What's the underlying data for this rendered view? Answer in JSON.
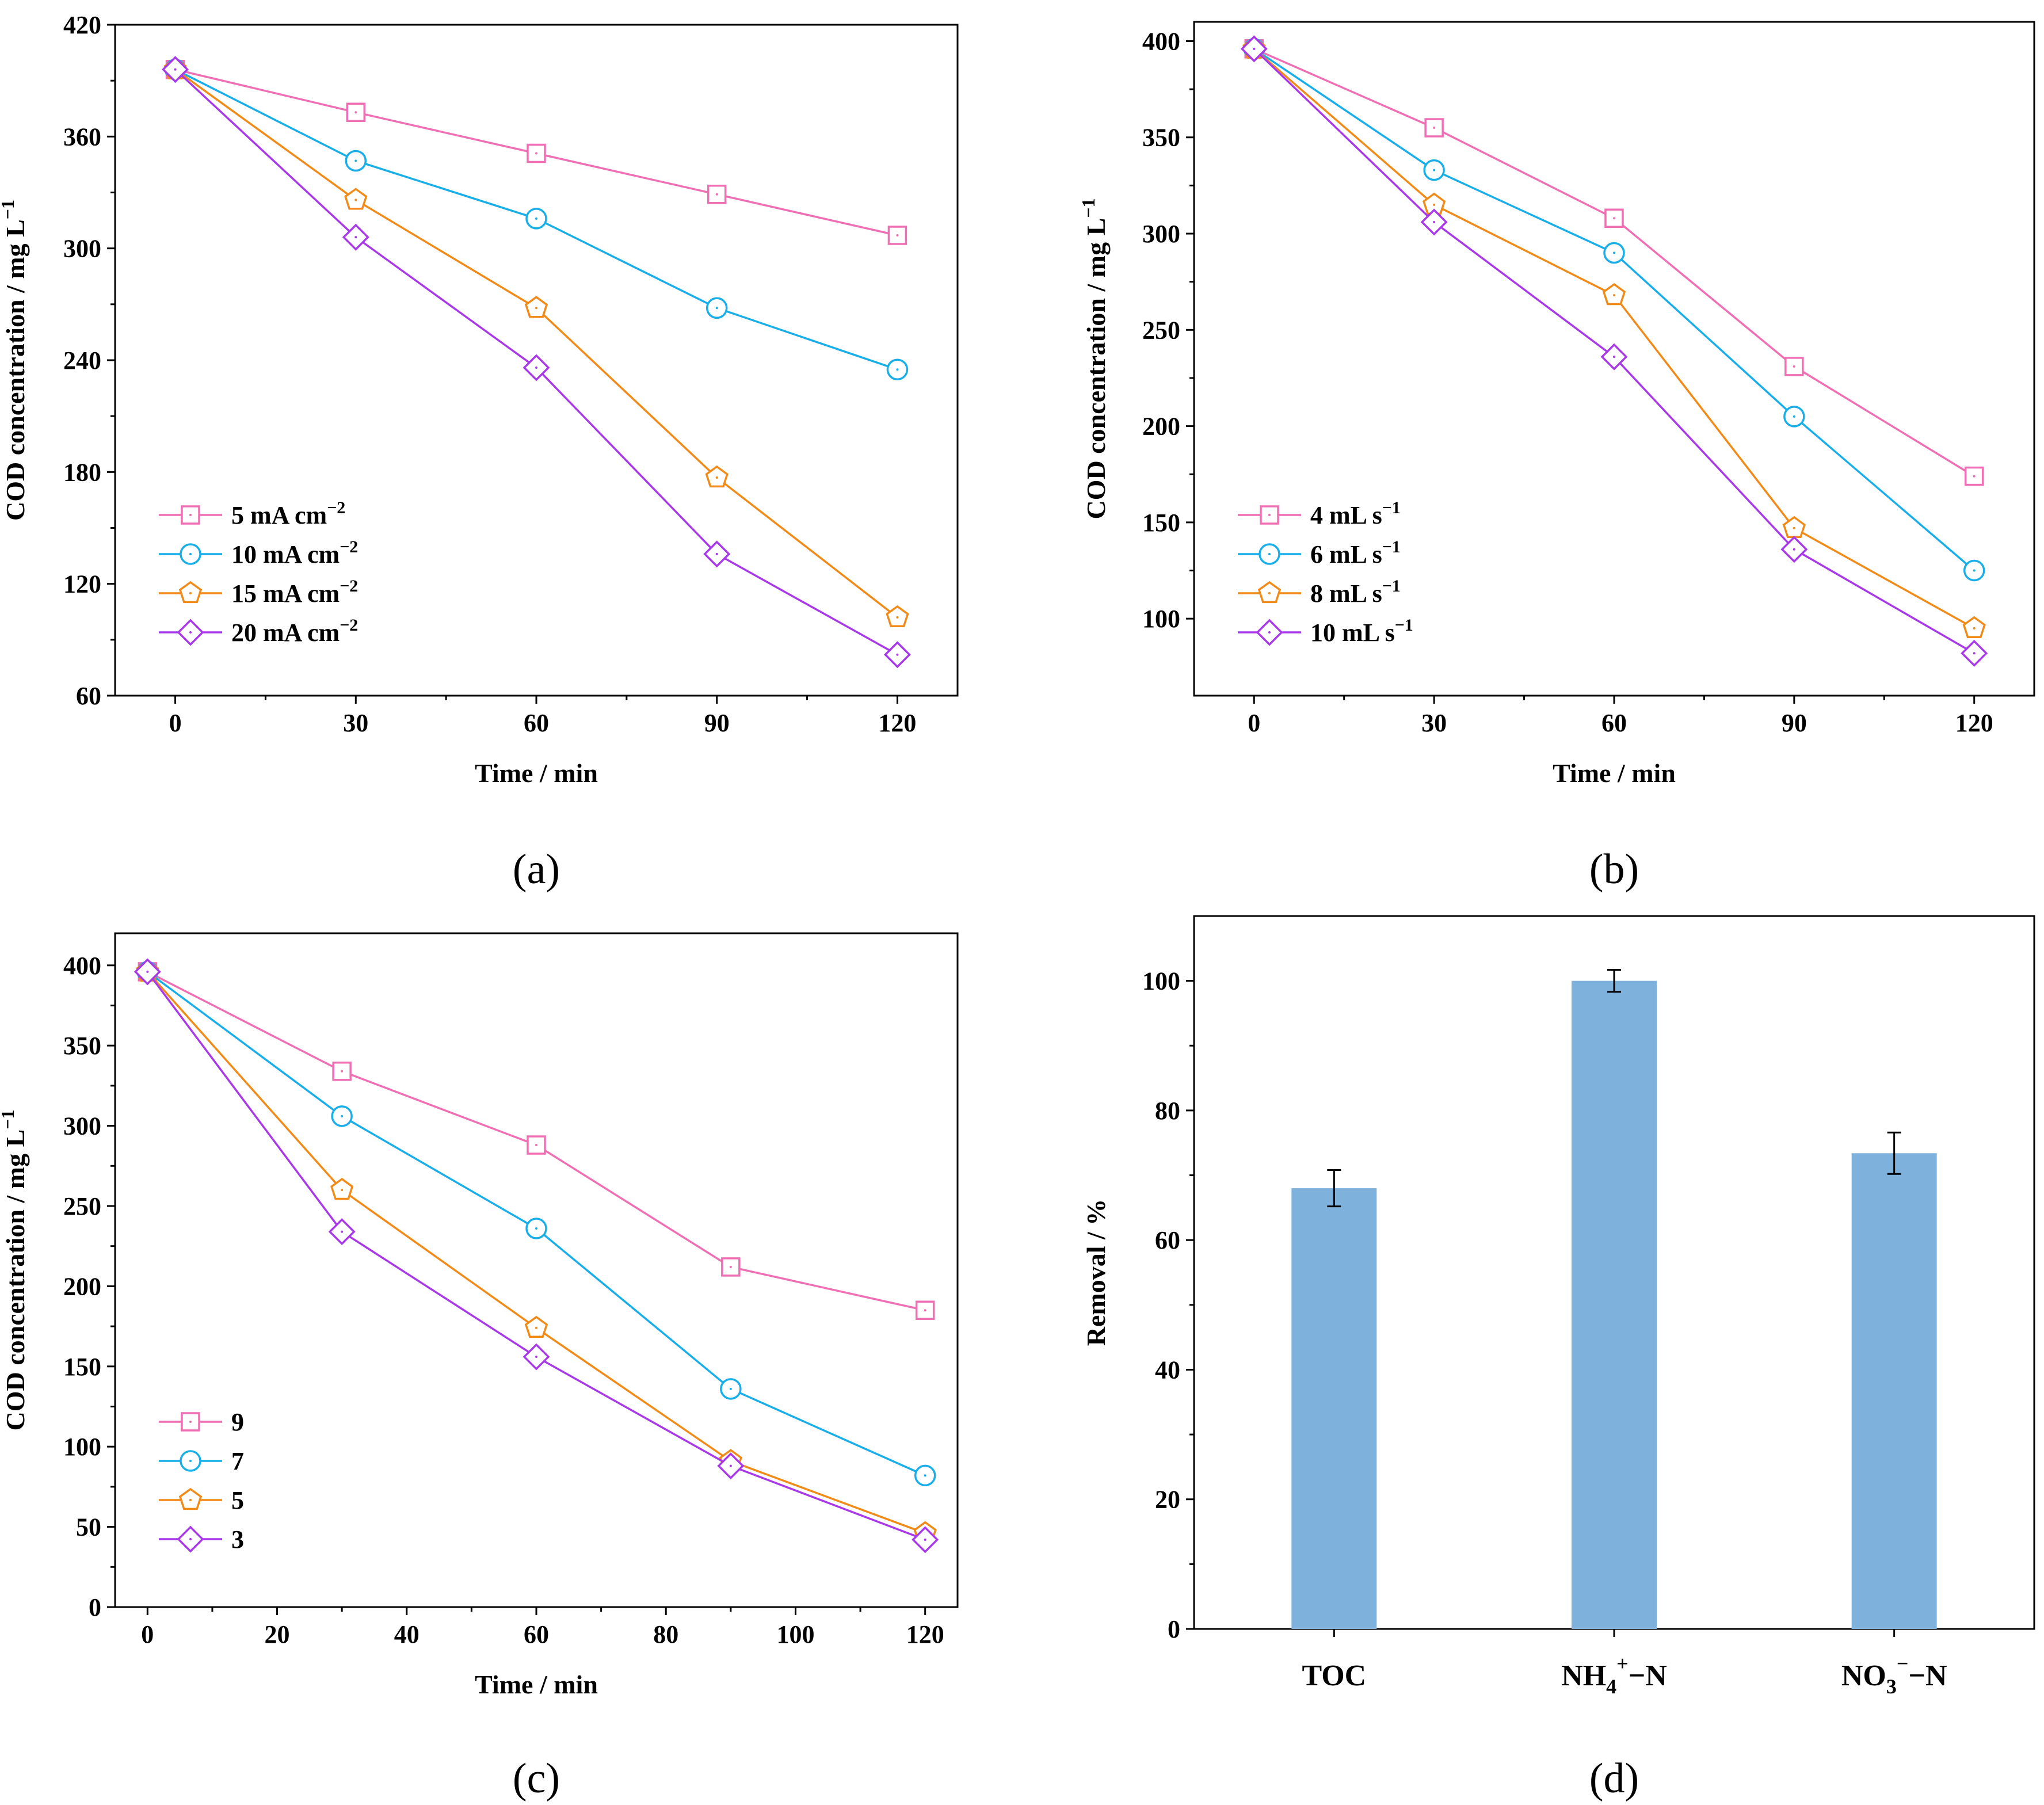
{
  "chart_data": [
    {
      "type": "line",
      "caption": "(a)",
      "xlabel": "Time / min",
      "ylabel_main": "COD concentration / mg L",
      "ylabel_sup": "−1",
      "x": [
        0,
        30,
        60,
        90,
        120
      ],
      "x_ticks": [
        0,
        30,
        60,
        90,
        120
      ],
      "x_tick_labels": [
        "0",
        "30",
        "60",
        "90",
        "120"
      ],
      "xlim": [
        -10,
        130
      ],
      "ylim": [
        60,
        420
      ],
      "y_ticks": [
        60,
        120,
        180,
        240,
        300,
        360,
        420
      ],
      "y_tick_labels": [
        "60",
        "120",
        "180",
        "240",
        "300",
        "360",
        "420"
      ],
      "legend_position": "bottom-left",
      "series": [
        {
          "name": "5 mA cm",
          "sup": "−2",
          "marker": "square",
          "color": "#F06EB4",
          "values": [
            396,
            373,
            351,
            329,
            307
          ]
        },
        {
          "name": "10 mA cm",
          "sup": "−2",
          "marker": "circle",
          "color": "#18AEEA",
          "values": [
            396,
            347,
            316,
            268,
            235
          ]
        },
        {
          "name": "15 mA cm",
          "sup": "−2",
          "marker": "pentagon",
          "color": "#F28A17",
          "values": [
            396,
            326,
            268,
            177,
            102
          ]
        },
        {
          "name": "20 mA cm",
          "sup": "−2",
          "marker": "diamond",
          "color": "#A838E8",
          "values": [
            396,
            306,
            236,
            136,
            82
          ]
        }
      ]
    },
    {
      "type": "line",
      "caption": "(b)",
      "xlabel": "Time / min",
      "ylabel_main": "COD concentration / mg L",
      "ylabel_sup": "−1",
      "x": [
        0,
        30,
        60,
        90,
        120
      ],
      "x_ticks": [
        0,
        30,
        60,
        90,
        120
      ],
      "x_tick_labels": [
        "0",
        "30",
        "60",
        "90",
        "120"
      ],
      "xlim": [
        -10,
        130
      ],
      "ylim": [
        60,
        410
      ],
      "y_ticks": [
        100,
        150,
        200,
        250,
        300,
        350,
        400
      ],
      "y_tick_labels": [
        "100",
        "150",
        "200",
        "250",
        "300",
        "350",
        "400"
      ],
      "legend_position": "bottom-left",
      "series": [
        {
          "name": "4 mL s",
          "sup": "−1",
          "marker": "square",
          "color": "#F06EB4",
          "values": [
            396,
            355,
            308,
            231,
            174
          ]
        },
        {
          "name": "6 mL s",
          "sup": "−1",
          "marker": "circle",
          "color": "#18AEEA",
          "values": [
            396,
            333,
            290,
            205,
            125
          ]
        },
        {
          "name": "8 mL s",
          "sup": "−1",
          "marker": "pentagon",
          "color": "#F28A17",
          "values": [
            396,
            315,
            268,
            147,
            95
          ]
        },
        {
          "name": "10 mL s",
          "sup": "−1",
          "marker": "diamond",
          "color": "#A838E8",
          "values": [
            396,
            306,
            236,
            136,
            82
          ]
        }
      ]
    },
    {
      "type": "line",
      "caption": "(c)",
      "xlabel": "Time / min",
      "ylabel_main": "COD concentration / mg L",
      "ylabel_sup": "−1",
      "x": [
        0,
        30,
        60,
        90,
        120
      ],
      "x_ticks": [
        0,
        20,
        40,
        60,
        80,
        100,
        120
      ],
      "x_tick_labels": [
        "0",
        "20",
        "40",
        "60",
        "80",
        "100",
        "120"
      ],
      "xlim": [
        -5,
        125
      ],
      "ylim": [
        0,
        420
      ],
      "y_ticks": [
        0,
        50,
        100,
        150,
        200,
        250,
        300,
        350,
        400
      ],
      "y_tick_labels": [
        "0",
        "50",
        "100",
        "150",
        "200",
        "250",
        "300",
        "350",
        "400"
      ],
      "legend_position": "bottom-left",
      "series": [
        {
          "name": "9",
          "sup": "",
          "marker": "square",
          "color": "#F06EB4",
          "values": [
            396,
            334,
            288,
            212,
            185
          ]
        },
        {
          "name": "7",
          "sup": "",
          "marker": "circle",
          "color": "#18AEEA",
          "values": [
            396,
            306,
            236,
            136,
            82
          ]
        },
        {
          "name": "5",
          "sup": "",
          "marker": "pentagon",
          "color": "#F28A17",
          "values": [
            396,
            260,
            174,
            91,
            46
          ]
        },
        {
          "name": "3",
          "sup": "",
          "marker": "diamond",
          "color": "#A838E8",
          "values": [
            396,
            234,
            156,
            88,
            42
          ]
        }
      ]
    },
    {
      "type": "bar",
      "caption": "(d)",
      "ylabel": "Removal / %",
      "ylim": [
        0,
        110
      ],
      "y_ticks": [
        0,
        20,
        40,
        60,
        80,
        100
      ],
      "y_tick_labels": [
        "0",
        "20",
        "40",
        "60",
        "80",
        "100"
      ],
      "bar_color": "#7EB2DD",
      "categories": [
        {
          "base": "TOC",
          "sub": "",
          "sup": "",
          "tail": "",
          "value": 68,
          "error": 2.8
        },
        {
          "base": "NH",
          "sub": "4",
          "sup": "+",
          "tail": "−N",
          "value": 100,
          "error": 1.7
        },
        {
          "base": "NO",
          "sub": "3",
          "sup": "−",
          "tail": "−N",
          "value": 73.4,
          "error": 3.2
        }
      ]
    }
  ]
}
